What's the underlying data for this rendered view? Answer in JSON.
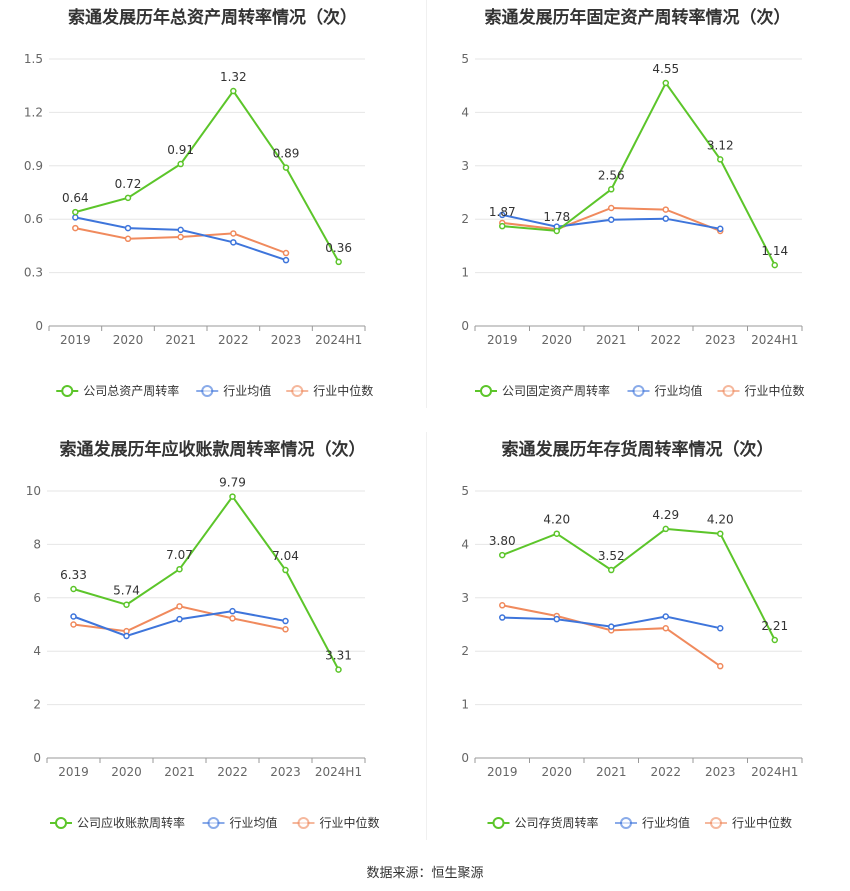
{
  "source": "数据来源：恒生聚源",
  "colors": {
    "company": "#5cc52a",
    "avg": "#3e75db",
    "median": "#f08a5d",
    "grid": "#e6e6e6",
    "axis": "#999999",
    "text": "#666666"
  },
  "chart_data": [
    {
      "type": "line",
      "title": "索通发展历年总资产周转率情况（次）",
      "categories": [
        "2019",
        "2020",
        "2021",
        "2022",
        "2023",
        "2024H1"
      ],
      "yticks": [
        "0",
        "0.3",
        "0.6",
        "0.9",
        "1.2",
        "1.5"
      ],
      "ylim": [
        0,
        1.5
      ],
      "series": [
        {
          "name": "公司总资产周转率",
          "values": [
            0.64,
            0.72,
            0.91,
            1.32,
            0.89,
            0.36
          ],
          "labels": [
            "0.64",
            "0.72",
            "0.91",
            "1.32",
            "0.89",
            "0.36"
          ]
        },
        {
          "name": "行业均值",
          "values": [
            0.61,
            0.55,
            0.54,
            0.47,
            0.37,
            null
          ]
        },
        {
          "name": "行业中位数",
          "values": [
            0.55,
            0.49,
            0.5,
            0.52,
            0.41,
            null
          ]
        }
      ]
    },
    {
      "type": "line",
      "title": "索通发展历年固定资产周转率情况（次）",
      "categories": [
        "2019",
        "2020",
        "2021",
        "2022",
        "2023",
        "2024H1"
      ],
      "yticks": [
        "0",
        "1",
        "2",
        "3",
        "4",
        "5"
      ],
      "ylim": [
        0,
        5
      ],
      "series": [
        {
          "name": "公司固定资产周转率",
          "values": [
            1.87,
            1.78,
            2.56,
            4.55,
            3.12,
            1.14
          ],
          "labels": [
            "1.87",
            "1.78",
            "2.56",
            "4.55",
            "3.12",
            "1.14"
          ]
        },
        {
          "name": "行业均值",
          "values": [
            2.08,
            1.86,
            1.99,
            2.01,
            1.82,
            null
          ]
        },
        {
          "name": "行业中位数",
          "values": [
            1.93,
            1.81,
            2.21,
            2.18,
            1.78,
            null
          ]
        }
      ]
    },
    {
      "type": "line",
      "title": "索通发展历年应收账款周转率情况（次）",
      "categories": [
        "2019",
        "2020",
        "2021",
        "2022",
        "2023",
        "2024H1"
      ],
      "yticks": [
        "0",
        "2",
        "4",
        "6",
        "8",
        "10"
      ],
      "ylim": [
        0,
        10
      ],
      "series": [
        {
          "name": "公司应收账款周转率",
          "values": [
            6.33,
            5.74,
            7.07,
            9.79,
            7.04,
            3.31
          ],
          "labels": [
            "6.33",
            "5.74",
            "7.07",
            "9.79",
            "7.04",
            "3.31"
          ]
        },
        {
          "name": "行业均值",
          "values": [
            5.3,
            4.57,
            5.2,
            5.5,
            5.13,
            null
          ]
        },
        {
          "name": "行业中位数",
          "values": [
            5.0,
            4.75,
            5.68,
            5.23,
            4.82,
            null
          ]
        }
      ]
    },
    {
      "type": "line",
      "title": "索通发展历年存货周转率情况（次）",
      "categories": [
        "2019",
        "2020",
        "2021",
        "2022",
        "2023",
        "2024H1"
      ],
      "yticks": [
        "0",
        "1",
        "2",
        "3",
        "4",
        "5"
      ],
      "ylim": [
        0,
        5
      ],
      "series": [
        {
          "name": "公司存货周转率",
          "values": [
            3.8,
            4.2,
            3.52,
            4.29,
            4.2,
            2.21
          ],
          "labels": [
            "3.80",
            "4.20",
            "3.52",
            "4.29",
            "4.20",
            "2.21"
          ]
        },
        {
          "name": "行业均值",
          "values": [
            2.63,
            2.6,
            2.46,
            2.65,
            2.43,
            null
          ]
        },
        {
          "name": "行业中位数",
          "values": [
            2.86,
            2.66,
            2.39,
            2.43,
            1.72,
            null
          ]
        }
      ]
    }
  ]
}
